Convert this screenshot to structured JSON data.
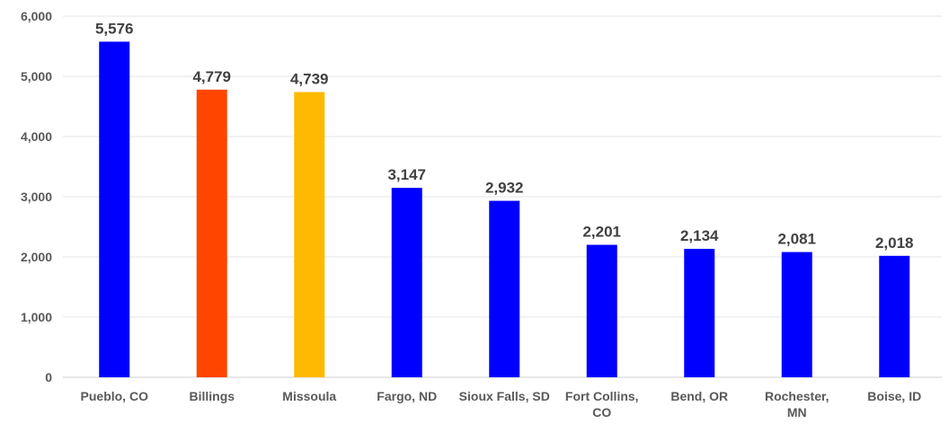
{
  "chart_data": {
    "type": "bar",
    "title": "",
    "xlabel": "",
    "ylabel": "",
    "ylim": [
      0,
      6000
    ],
    "yticks": [
      0,
      1000,
      2000,
      3000,
      4000,
      5000,
      6000
    ],
    "ytick_labels": [
      "0",
      "1,000",
      "2,000",
      "3,000",
      "4,000",
      "5,000",
      "6,000"
    ],
    "grid": true,
    "legend": "none",
    "categories": [
      [
        "Pueblo, CO"
      ],
      [
        "Billings"
      ],
      [
        "Missoula"
      ],
      [
        "Fargo, ND"
      ],
      [
        "Sioux Falls, SD"
      ],
      [
        "Fort Collins,",
        "CO"
      ],
      [
        "Bend, OR"
      ],
      [
        "Rochester,",
        "MN"
      ],
      [
        "Boise, ID"
      ]
    ],
    "values": [
      5576,
      4779,
      4739,
      3147,
      2932,
      2201,
      2134,
      2081,
      2018
    ],
    "value_labels": [
      "5,576",
      "4,779",
      "4,739",
      "3,147",
      "2,932",
      "2,201",
      "2,134",
      "2,081",
      "2,018"
    ],
    "colors": [
      "#0000ff",
      "#ff4500",
      "#ffb900",
      "#0000ff",
      "#0000ff",
      "#0000ff",
      "#0000ff",
      "#0000ff",
      "#0000ff"
    ]
  }
}
